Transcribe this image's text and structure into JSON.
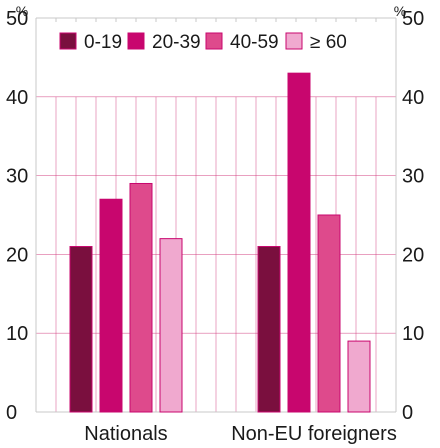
{
  "chart_data": {
    "type": "bar",
    "title": "",
    "xlabel": "",
    "ylabel": "%",
    "ylabel_right": "%",
    "ylim": [
      0,
      50
    ],
    "yticks": [
      0,
      10,
      20,
      30,
      40,
      50
    ],
    "grid": true,
    "legend_position": "top",
    "categories": [
      "Nationals",
      "Non-EU foreigners"
    ],
    "series": [
      {
        "name": "0-19",
        "values": [
          21,
          21
        ],
        "color": "#7a0f3e"
      },
      {
        "name": "20-39",
        "values": [
          27,
          43
        ],
        "color": "#c8066e"
      },
      {
        "name": "40-59",
        "values": [
          29,
          25
        ],
        "color": "#de4a8c"
      },
      {
        "name": "≥ 60",
        "values": [
          22,
          9
        ],
        "color": "#f0a9cf"
      }
    ],
    "colors": {
      "grid": "#d0357a",
      "axis": "#c8c8c8",
      "bar_edge": "#c8066e"
    }
  }
}
